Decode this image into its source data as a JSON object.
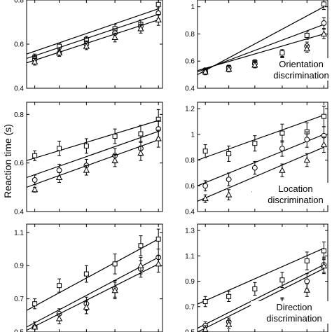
{
  "figure": {
    "ylabel": "Reaction time (s)"
  },
  "chart_data": [
    {
      "type": "scatter",
      "ylabel": "Reaction time (s)",
      "ylim": [
        0.4,
        0.8
      ],
      "yticks": [
        "0.4",
        "0.6",
        "0.8"
      ],
      "annotation": [],
      "series": [
        {
          "marker": "square",
          "y": [
            0.54,
            0.59,
            0.62,
            0.67,
            0.69,
            0.78
          ],
          "err": [
            0.015,
            0.015,
            0.015,
            0.02,
            0.02,
            0.03
          ],
          "fit": [
            0.555,
            0.76
          ]
        },
        {
          "marker": "circle",
          "y": [
            0.53,
            0.56,
            0.6,
            0.65,
            0.68,
            0.74
          ],
          "err": [
            0.015,
            0.015,
            0.015,
            0.02,
            0.02,
            0.025
          ],
          "fit": [
            0.535,
            0.735
          ]
        },
        {
          "marker": "triangle",
          "y": [
            0.52,
            0.56,
            0.59,
            0.63,
            0.67,
            0.71
          ],
          "err": [
            0.015,
            0.015,
            0.015,
            0.02,
            0.02,
            0.025
          ],
          "fit": [
            0.515,
            0.71
          ]
        }
      ]
    },
    {
      "type": "scatter",
      "ylabel": "",
      "ylim": [
        0.4,
        1.05
      ],
      "yticks": [
        "0.4",
        "0.6",
        "0.8",
        "1"
      ],
      "annotation": [
        "Orientation",
        "discrimination"
      ],
      "series": [
        {
          "marker": "square",
          "y": [
            0.53,
            0.55,
            0.59,
            0.66,
            0.79,
            1.02
          ],
          "err": [
            0.02,
            0.02,
            0.02,
            0.025,
            0.03,
            0.04
          ],
          "fit": [
            0.5,
            1.0
          ]
        },
        {
          "marker": "circle",
          "y": [
            0.52,
            0.55,
            0.58,
            0.61,
            0.71,
            0.88
          ],
          "err": [
            0.02,
            0.02,
            0.02,
            0.02,
            0.03,
            0.04
          ],
          "fit": [
            0.52,
            0.87
          ]
        },
        {
          "marker": "triangle",
          "y": [
            0.52,
            0.54,
            0.57,
            0.6,
            0.69,
            0.8
          ],
          "err": [
            0.02,
            0.02,
            0.02,
            0.02,
            0.025,
            0.035
          ],
          "fit": [
            0.53,
            0.8
          ]
        }
      ]
    },
    {
      "type": "scatter",
      "ylabel": "",
      "ylim": [
        0.4,
        0.85
      ],
      "yticks": [
        "0.4",
        "0.6",
        "0.8"
      ],
      "annotation": [],
      "series": [
        {
          "marker": "square",
          "y": [
            0.63,
            0.66,
            0.67,
            0.71,
            0.72,
            0.78
          ],
          "err": [
            0.02,
            0.03,
            0.03,
            0.03,
            0.035,
            0.04
          ],
          "fit": [
            0.61,
            0.775
          ]
        },
        {
          "marker": "circle",
          "y": [
            0.53,
            0.57,
            0.59,
            0.63,
            0.66,
            0.74
          ],
          "err": [
            0.02,
            0.025,
            0.025,
            0.03,
            0.03,
            0.035
          ],
          "fit": [
            0.54,
            0.73
          ]
        },
        {
          "marker": "triangle",
          "y": [
            0.49,
            0.54,
            0.57,
            0.61,
            0.64,
            0.7
          ],
          "err": [
            0.01,
            0.02,
            0.02,
            0.025,
            0.03,
            0.035
          ],
          "fit": [
            0.5,
            0.695
          ]
        }
      ]
    },
    {
      "type": "scatter",
      "ylabel": "",
      "ylim": [
        0.4,
        1.25
      ],
      "yticks": [
        "0.4",
        "0.6",
        "0.8",
        "1",
        "1.2"
      ],
      "annotation": [
        "Location",
        "discrimination"
      ],
      "series": [
        {
          "marker": "square",
          "y": [
            0.87,
            0.85,
            0.93,
            1.01,
            1.02,
            1.14
          ],
          "err": [
            0.05,
            0.06,
            0.06,
            0.07,
            0.07,
            0.08
          ],
          "fit": [
            0.8,
            1.15
          ]
        },
        {
          "marker": "circle",
          "y": [
            0.6,
            0.65,
            0.74,
            0.89,
            0.96,
            0.99
          ],
          "err": [
            0.04,
            0.05,
            0.05,
            0.06,
            0.06,
            0.07
          ],
          "fit": [
            0.6,
            1.0
          ]
        },
        {
          "marker": "triangle",
          "y": [
            0.5,
            0.53,
            0.57,
            0.72,
            0.8,
            0.92
          ],
          "err": [
            0.03,
            0.04,
            0.04,
            0.05,
            0.05,
            0.06
          ],
          "fit": [
            0.48,
            0.9
          ]
        }
      ]
    },
    {
      "type": "scatter",
      "ylabel": "",
      "ylim": [
        0.5,
        1.15
      ],
      "yticks": [
        "0.5",
        "0.7",
        "0.9",
        "1.1"
      ],
      "annotation": [],
      "series": [
        {
          "marker": "square",
          "y": [
            0.67,
            0.78,
            0.85,
            0.91,
            1.02,
            1.06
          ],
          "err": [
            0.03,
            0.04,
            0.05,
            0.06,
            0.06,
            0.06
          ],
          "fit": [
            0.63,
            1.06
          ]
        },
        {
          "marker": "circle",
          "y": [
            0.53,
            0.61,
            0.67,
            0.76,
            0.88,
            0.95
          ],
          "err": [
            0.03,
            0.03,
            0.04,
            0.05,
            0.05,
            0.05
          ],
          "fit": [
            0.53,
            0.95
          ]
        },
        {
          "marker": "triangle",
          "y": [
            0.53,
            0.58,
            0.65,
            0.75,
            0.9,
            0.91
          ],
          "err": [
            0.03,
            0.03,
            0.04,
            0.05,
            0.05,
            0.05
          ],
          "fit": [
            0.51,
            0.91
          ]
        }
      ]
    },
    {
      "type": "scatter",
      "ylabel": "",
      "ylim": [
        0.5,
        1.35
      ],
      "yticks": [
        "0.5",
        "0.7",
        "0.9",
        "1.1",
        "1.3"
      ],
      "annotation": [
        "Direction",
        "discrimination"
      ],
      "series": [
        {
          "marker": "square",
          "y": [
            0.74,
            0.78,
            0.84,
            0.91,
            1.06,
            1.14
          ],
          "err": [
            0.04,
            0.04,
            0.05,
            0.06,
            0.07,
            0.07
          ],
          "fit": [
            0.72,
            1.16
          ]
        },
        {
          "marker": "circle",
          "y": [
            0.55,
            0.58,
            0.62,
            0.72,
            0.9,
            1.03
          ],
          "err": [
            0.03,
            0.03,
            0.04,
            0.05,
            0.06,
            0.06
          ],
          "fit": [
            0.53,
            1.03
          ]
        },
        {
          "marker": "triangle",
          "y": [
            0.52,
            0.56,
            0.62,
            0.71,
            0.83,
            1.02
          ],
          "err": [
            0.03,
            0.03,
            0.04,
            0.05,
            0.05,
            0.06
          ],
          "fit": [
            0.5,
            1.0
          ]
        }
      ]
    }
  ]
}
